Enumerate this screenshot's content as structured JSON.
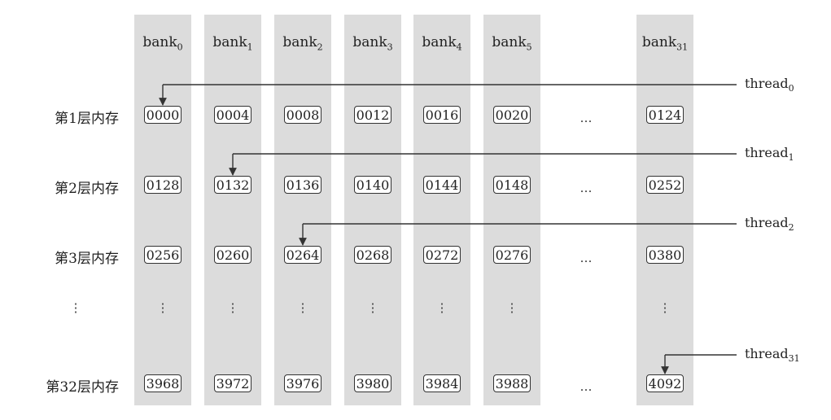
{
  "banks": [
    {
      "label": "bank",
      "sub": "0"
    },
    {
      "label": "bank",
      "sub": "1"
    },
    {
      "label": "bank",
      "sub": "2"
    },
    {
      "label": "bank",
      "sub": "3"
    },
    {
      "label": "bank",
      "sub": "4"
    },
    {
      "label": "bank",
      "sub": "5"
    },
    {
      "label": "bank",
      "sub": "31"
    }
  ],
  "rows": [
    {
      "label": "第1层内存",
      "cells": [
        "0000",
        "0004",
        "0008",
        "0012",
        "0016",
        "0020",
        "0124"
      ]
    },
    {
      "label": "第2层内存",
      "cells": [
        "0128",
        "0132",
        "0136",
        "0140",
        "0144",
        "0148",
        "0252"
      ]
    },
    {
      "label": "第3层内存",
      "cells": [
        "0256",
        "0260",
        "0264",
        "0268",
        "0272",
        "0276",
        "0380"
      ]
    },
    {
      "label": "第32层内存",
      "cells": [
        "3968",
        "3972",
        "3976",
        "3980",
        "3984",
        "3988",
        "4092"
      ]
    }
  ],
  "dots": {
    "horizontal": "…",
    "vertical": "⋮"
  },
  "threads": [
    {
      "label": "thread",
      "sub": "0",
      "row": 0,
      "bank": 0
    },
    {
      "label": "thread",
      "sub": "1",
      "row": 1,
      "bank": 1
    },
    {
      "label": "thread",
      "sub": "2",
      "row": 2,
      "bank": 2
    },
    {
      "label": "thread",
      "sub": "31",
      "row": 3,
      "bank": 6
    }
  ]
}
